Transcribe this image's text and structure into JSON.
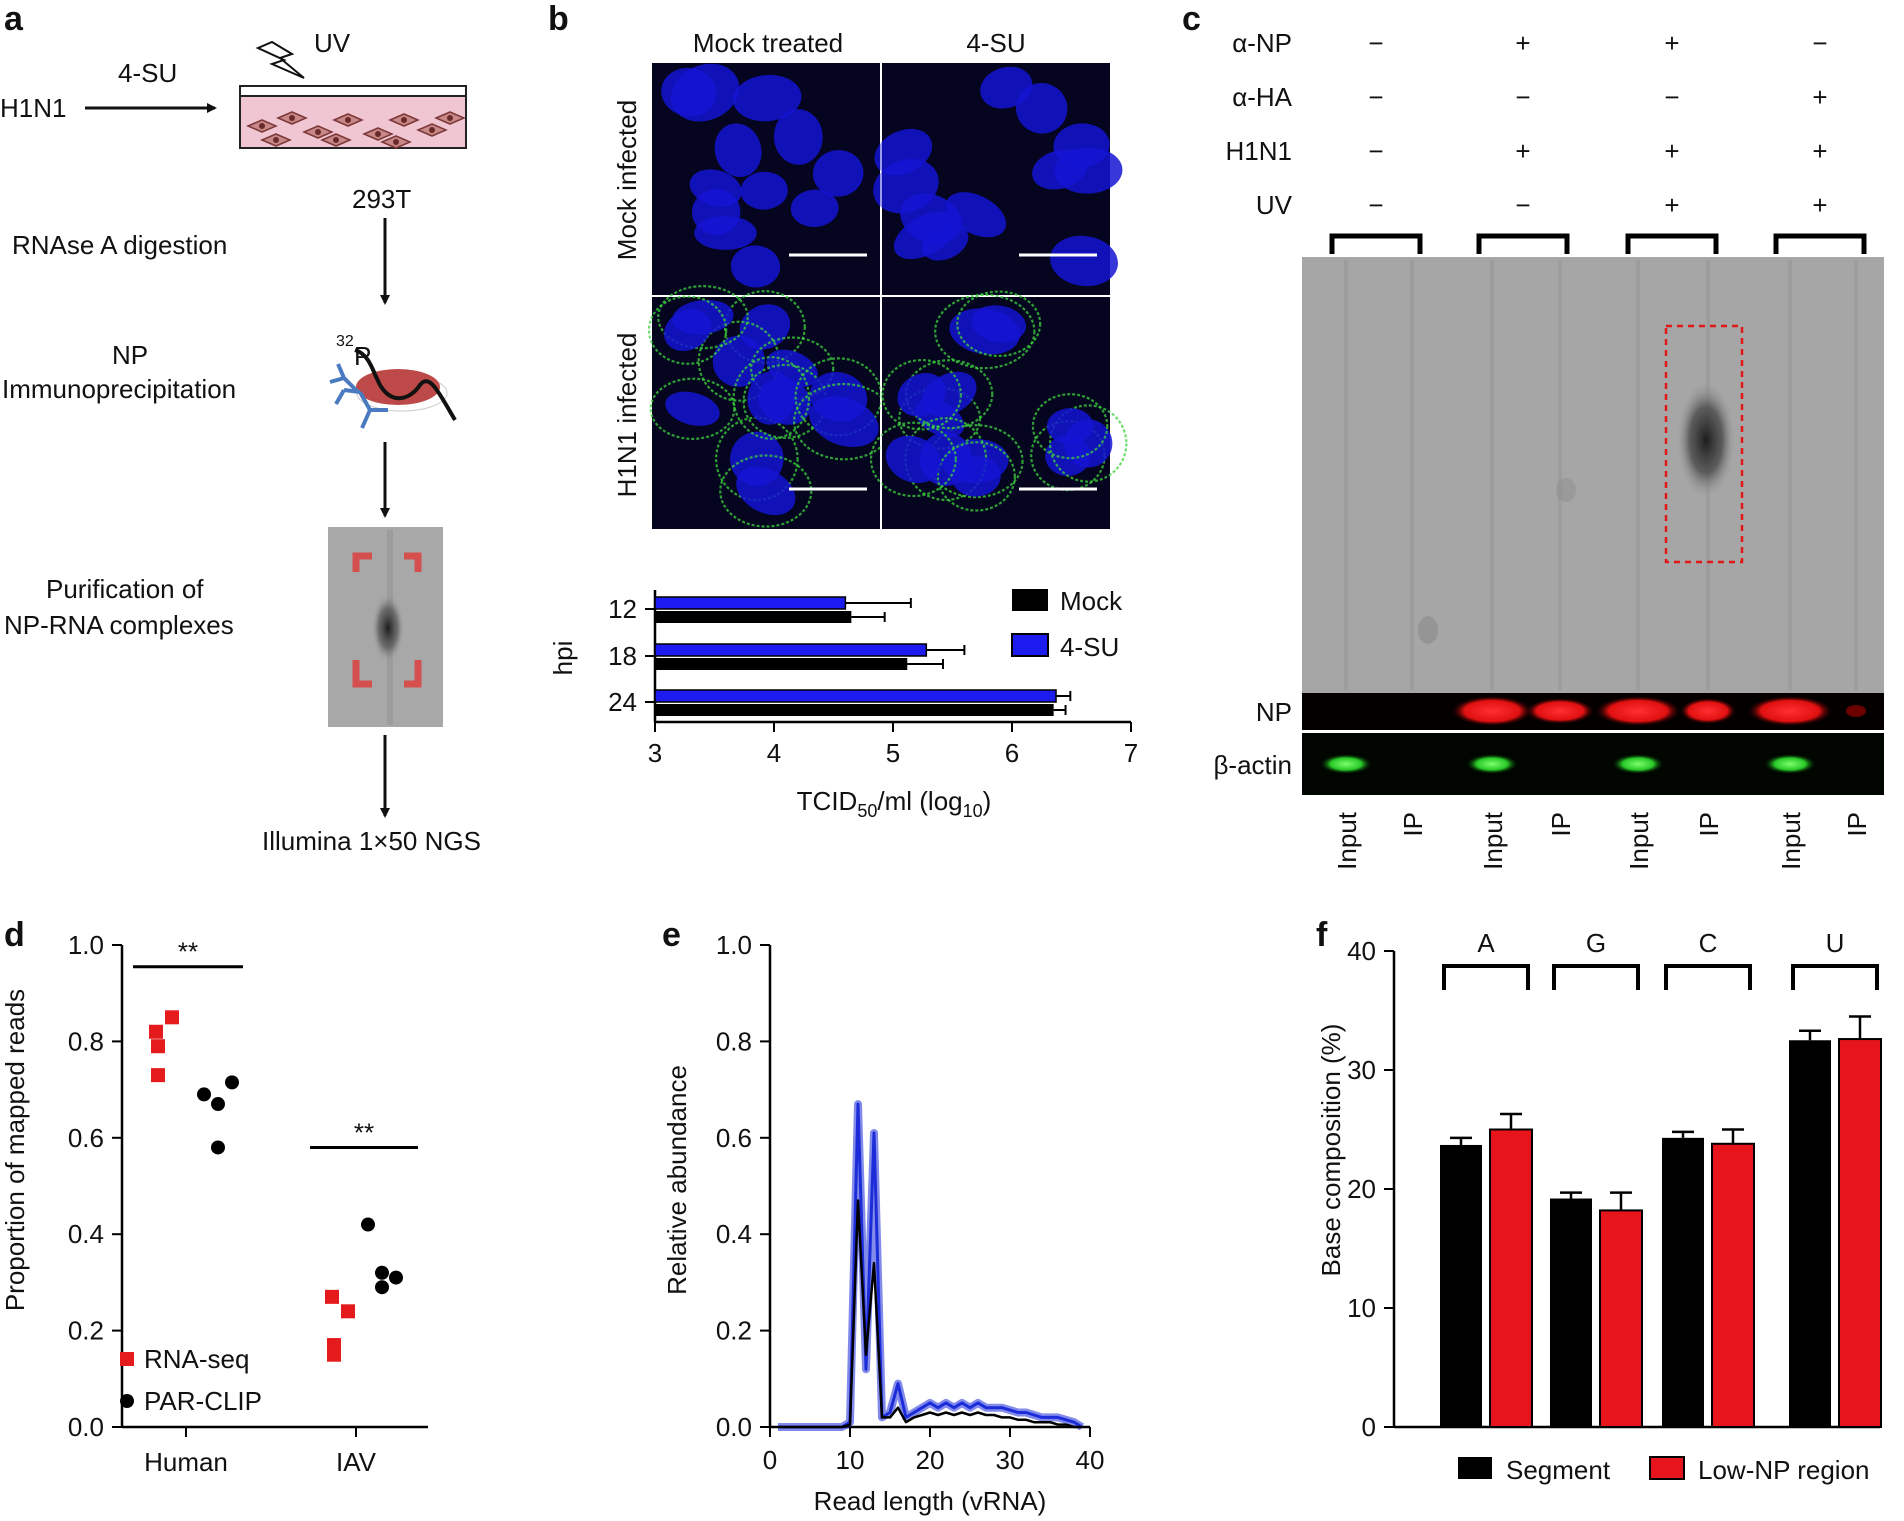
{
  "figure": {
    "panel_letters": [
      "a",
      "b",
      "c",
      "d",
      "e",
      "f"
    ]
  },
  "panel_a": {
    "virus": "H1N1",
    "label_4su": "4-SU",
    "label_uv": "UV",
    "cell_line": "293T",
    "step1": "RNAse A digestion",
    "step2_line1": "NP",
    "step2_line2": "Immunoprecipitation",
    "isotope_mass": "32",
    "isotope_elem": "P",
    "step3_line1": "Purification of",
    "step3_line2": "NP-RNA complexes",
    "step4": "Illumina 1×50 NGS"
  },
  "panel_b": {
    "columns": [
      "Mock treated",
      "4-SU"
    ],
    "rows": [
      "Mock infected",
      "H1N1 infected"
    ],
    "colors": {
      "nucleus": "#1414d4",
      "membrane": "#3cd23c",
      "background": "#050520"
    }
  },
  "chart_b": {
    "type": "bar",
    "orientation": "horizontal",
    "categories": [
      "12",
      "18",
      "24"
    ],
    "ylabel": "hpi",
    "xlabel_main": "TCID",
    "xlabel_sub": "50",
    "xlabel_mid": "/ml (log",
    "xlabel_sub2": "10",
    "xlabel_end": ")",
    "xlim": [
      3,
      7
    ],
    "xticks": [
      "3",
      "4",
      "5",
      "6",
      "7"
    ],
    "series": [
      {
        "name": "Mock",
        "color": "#000000",
        "values": [
          4.65,
          5.12,
          6.35
        ],
        "errors": [
          0.28,
          0.3,
          0.1
        ]
      },
      {
        "name": "4-SU",
        "color": "#1c1cf0",
        "values": [
          4.6,
          5.28,
          6.37
        ],
        "errors": [
          0.55,
          0.32,
          0.12
        ]
      }
    ]
  },
  "panel_c": {
    "conditions": [
      {
        "label": "α-NP",
        "values": [
          "−",
          "+",
          "+",
          "−"
        ]
      },
      {
        "label": "α-HA",
        "values": [
          "−",
          "−",
          "−",
          "+"
        ]
      },
      {
        "label": "H1N1",
        "values": [
          "−",
          "+",
          "+",
          "+"
        ]
      },
      {
        "label": "UV",
        "values": [
          "−",
          "−",
          "+",
          "+"
        ]
      }
    ],
    "blot_labels": [
      "NP",
      "β-actin"
    ],
    "lane_labels": [
      "Input",
      "IP",
      "Input",
      "IP",
      "Input",
      "IP",
      "Input",
      "IP"
    ],
    "colors": {
      "np_band": "#ff2020",
      "actin_band": "#2ee82e",
      "highlight": "#e01818"
    }
  },
  "chart_d": {
    "type": "scatter",
    "ylabel": "Proportion of mapped reads",
    "ylim": [
      0,
      1
    ],
    "yticks": [
      "0.0",
      "0.2",
      "0.4",
      "0.6",
      "0.8",
      "1.0"
    ],
    "categories": [
      "Human",
      "IAV"
    ],
    "significance": [
      "**",
      "**"
    ],
    "series": [
      {
        "name": "RNA-seq",
        "color": "#e41a1c",
        "marker": "square",
        "points": [
          [
            1,
            0.82
          ],
          [
            1,
            0.85
          ],
          [
            1,
            0.79
          ],
          [
            1,
            0.73
          ],
          [
            2,
            0.27
          ],
          [
            2,
            0.24
          ],
          [
            2,
            0.17
          ],
          [
            2,
            0.15
          ]
        ]
      },
      {
        "name": "PAR-CLIP",
        "color": "#000000",
        "marker": "circle",
        "points": [
          [
            1,
            0.69
          ],
          [
            1,
            0.67
          ],
          [
            1,
            0.715
          ],
          [
            1,
            0.58
          ],
          [
            2,
            0.42
          ],
          [
            2,
            0.32
          ],
          [
            2,
            0.31
          ],
          [
            2,
            0.29
          ]
        ]
      }
    ]
  },
  "chart_e": {
    "type": "line",
    "xlabel": "Read length (vRNA)",
    "ylabel": "Relative abundance",
    "xlim": [
      0,
      40
    ],
    "ylim": [
      0,
      1
    ],
    "xticks": [
      "0",
      "10",
      "20",
      "30",
      "40"
    ],
    "yticks": [
      "0.0",
      "0.2",
      "0.4",
      "0.6",
      "0.8",
      "1.0"
    ],
    "series": [
      {
        "color": "#1c2cd8",
        "x": [
          1,
          2,
          3,
          4,
          5,
          6,
          7,
          8,
          9,
          10,
          11,
          12,
          13,
          14,
          15,
          16,
          17,
          18,
          19,
          20,
          21,
          22,
          23,
          24,
          25,
          26,
          27,
          28,
          29,
          30,
          31,
          32,
          33,
          34,
          35,
          36,
          37,
          38,
          39
        ],
        "y": [
          0,
          0,
          0,
          0,
          0,
          0,
          0,
          0,
          0,
          0.01,
          0.67,
          0.12,
          0.61,
          0.02,
          0.03,
          0.09,
          0.02,
          0.03,
          0.04,
          0.05,
          0.04,
          0.05,
          0.04,
          0.05,
          0.04,
          0.05,
          0.04,
          0.04,
          0.04,
          0.035,
          0.03,
          0.03,
          0.025,
          0.02,
          0.02,
          0.02,
          0.015,
          0.01,
          0
        ]
      },
      {
        "color": "#000000",
        "x": [
          1,
          2,
          3,
          4,
          5,
          6,
          7,
          8,
          9,
          10,
          11,
          12,
          13,
          14,
          15,
          16,
          17,
          18,
          19,
          20,
          21,
          22,
          23,
          24,
          25,
          26,
          27,
          28,
          29,
          30,
          31,
          32,
          33,
          34,
          35,
          36,
          37,
          38,
          39
        ],
        "y": [
          0,
          0,
          0,
          0,
          0,
          0,
          0,
          0,
          0,
          0.005,
          0.47,
          0.15,
          0.34,
          0.02,
          0.02,
          0.04,
          0.01,
          0.02,
          0.025,
          0.03,
          0.025,
          0.03,
          0.025,
          0.03,
          0.025,
          0.03,
          0.025,
          0.025,
          0.02,
          0.02,
          0.015,
          0.015,
          0.01,
          0.01,
          0.01,
          0.005,
          0.005,
          0,
          0
        ]
      }
    ]
  },
  "chart_f": {
    "type": "bar",
    "ylabel": "Base composition (%)",
    "ylim": [
      0,
      40
    ],
    "yticks": [
      "0",
      "10",
      "20",
      "30",
      "40"
    ],
    "categories": [
      "A",
      "G",
      "C",
      "U"
    ],
    "series": [
      {
        "name": "Segment",
        "color": "#000000",
        "values": [
          23.7,
          19.2,
          24.3,
          32.5
        ],
        "errors": [
          0.6,
          0.5,
          0.5,
          0.8
        ]
      },
      {
        "name": "Low-NP region",
        "color": "#e8141c",
        "values": [
          25.0,
          18.2,
          23.8,
          32.6
        ],
        "errors": [
          1.3,
          1.5,
          1.2,
          1.9
        ]
      }
    ]
  }
}
